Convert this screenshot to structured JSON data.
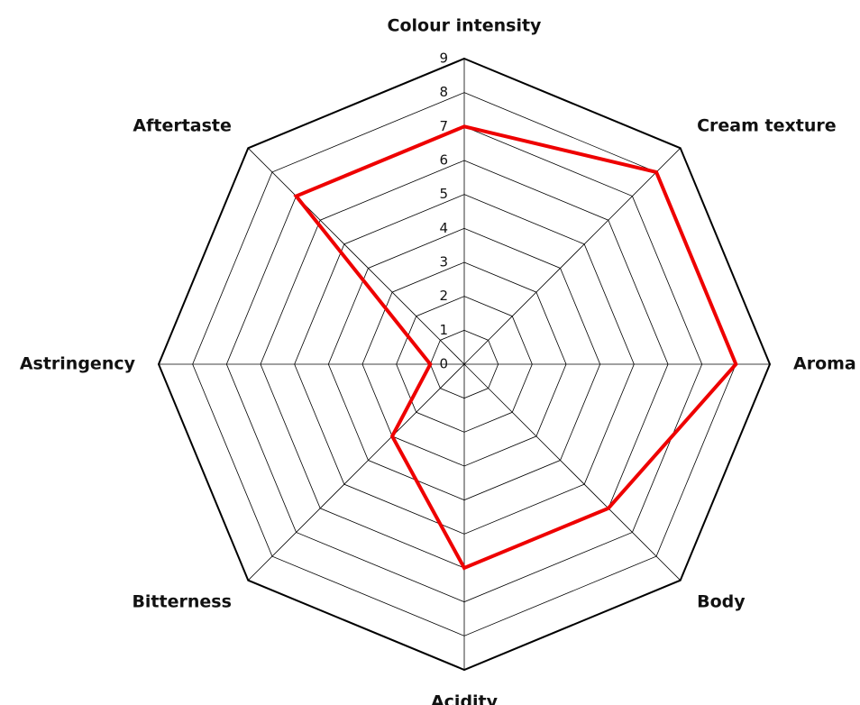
{
  "chart_data": {
    "type": "radar",
    "categories": [
      "Colour intensity",
      "Cream texture",
      "Aroma",
      "Body",
      "Acidity",
      "Bitterness",
      "Astringency",
      "Aftertaste"
    ],
    "values": [
      7,
      8,
      8,
      6,
      6,
      3,
      1,
      7
    ],
    "color": "#ee0000",
    "rlim": [
      0,
      9
    ],
    "rticks": [
      0,
      1,
      2,
      3,
      4,
      5,
      6,
      7,
      8,
      9
    ],
    "grid": true
  }
}
